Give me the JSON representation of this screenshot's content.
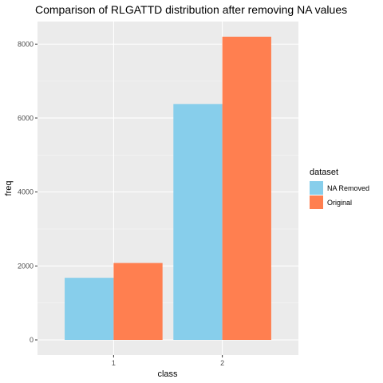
{
  "chart_data": {
    "type": "bar",
    "title": "Comparison of RLGATTD distribution after removing NA values",
    "xlabel": "class",
    "ylabel": "freq",
    "categories": [
      "1",
      "2"
    ],
    "series": [
      {
        "name": "NA Removed",
        "values": [
          1680,
          6380
        ],
        "color": "#87ceeb"
      },
      {
        "name": "Original",
        "values": [
          2080,
          8200
        ],
        "color": "#ff7f50"
      }
    ],
    "ylim": [
      -410,
      8610
    ],
    "yticks": [
      0,
      2000,
      4000,
      6000,
      8000
    ],
    "ytick_labels": [
      "0",
      "2000",
      "4000",
      "6000",
      "8000"
    ],
    "grid": true,
    "legend": {
      "title": "dataset",
      "position": "right"
    }
  }
}
